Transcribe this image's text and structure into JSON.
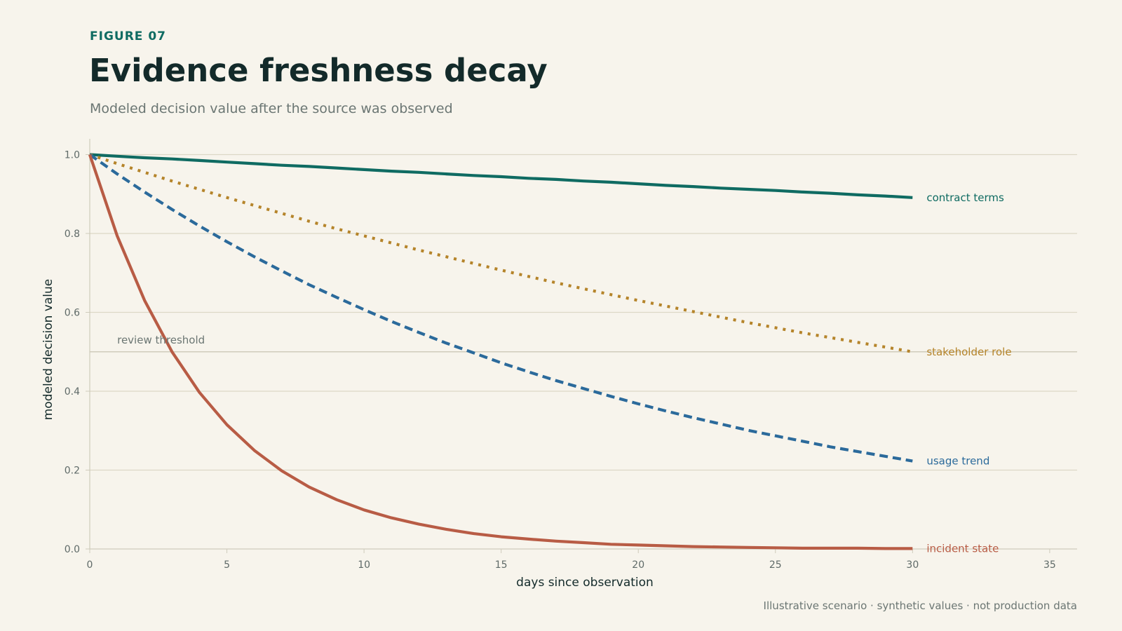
{
  "header": {
    "figure_label": "FIGURE 07",
    "title": "Evidence freshness decay",
    "subtitle": "Modeled decision value after the source was observed"
  },
  "footnote": "Illustrative scenario · synthetic values · not production data",
  "colors": {
    "background": "#f7f4ec",
    "grid": "#dcd8c6",
    "axis": "#cfcbbb",
    "accent": "#0f6b62"
  },
  "chart_data": {
    "type": "line",
    "xlabel": "days since observation",
    "ylabel": "modeled decision value",
    "xlim": [
      0,
      36
    ],
    "ylim": [
      0,
      1.04
    ],
    "xticks": [
      0,
      5,
      10,
      15,
      20,
      25,
      30,
      35
    ],
    "yticks": [
      0.0,
      0.2,
      0.4,
      0.6,
      0.8,
      1.0
    ],
    "ytick_labels": [
      "0.0",
      "0.2",
      "0.4",
      "0.6",
      "0.8",
      "1.0"
    ],
    "grid": "horizontal",
    "reference_line": {
      "y": 0.5,
      "label": "review threshold"
    },
    "x": [
      0,
      1,
      2,
      3,
      4,
      5,
      6,
      7,
      8,
      9,
      10,
      11,
      12,
      13,
      14,
      15,
      16,
      17,
      18,
      19,
      20,
      21,
      22,
      23,
      24,
      25,
      26,
      27,
      28,
      29,
      30
    ],
    "series": [
      {
        "name": "contract terms",
        "color": "#0f6b62",
        "style": "solid",
        "values": [
          1.0,
          0.996,
          0.992,
          0.989,
          0.985,
          0.981,
          0.977,
          0.973,
          0.97,
          0.966,
          0.962,
          0.958,
          0.955,
          0.951,
          0.947,
          0.944,
          0.94,
          0.937,
          0.933,
          0.93,
          0.926,
          0.922,
          0.919,
          0.915,
          0.912,
          0.909,
          0.905,
          0.902,
          0.898,
          0.895,
          0.891
        ]
      },
      {
        "name": "stakeholder role",
        "color": "#b5842a",
        "style": "dotted",
        "values": [
          1.0,
          0.977,
          0.955,
          0.933,
          0.912,
          0.891,
          0.871,
          0.851,
          0.831,
          0.812,
          0.794,
          0.776,
          0.758,
          0.741,
          0.724,
          0.707,
          0.691,
          0.675,
          0.66,
          0.645,
          0.63,
          0.616,
          0.602,
          0.588,
          0.574,
          0.561,
          0.548,
          0.536,
          0.524,
          0.512,
          0.5
        ]
      },
      {
        "name": "usage trend",
        "color": "#2b6a9b",
        "style": "dashed",
        "values": [
          1.0,
          0.951,
          0.905,
          0.861,
          0.819,
          0.779,
          0.741,
          0.705,
          0.67,
          0.638,
          0.607,
          0.577,
          0.549,
          0.522,
          0.497,
          0.472,
          0.449,
          0.427,
          0.407,
          0.387,
          0.368,
          0.35,
          0.333,
          0.317,
          0.301,
          0.287,
          0.273,
          0.259,
          0.247,
          0.235,
          0.223
        ]
      },
      {
        "name": "incident state",
        "color": "#b85c45",
        "style": "solid",
        "values": [
          1.0,
          0.794,
          0.63,
          0.5,
          0.397,
          0.315,
          0.25,
          0.198,
          0.157,
          0.125,
          0.099,
          0.079,
          0.063,
          0.05,
          0.039,
          0.031,
          0.025,
          0.02,
          0.016,
          0.012,
          0.01,
          0.008,
          0.006,
          0.005,
          0.004,
          0.003,
          0.002,
          0.002,
          0.002,
          0.001,
          0.001
        ]
      }
    ]
  }
}
